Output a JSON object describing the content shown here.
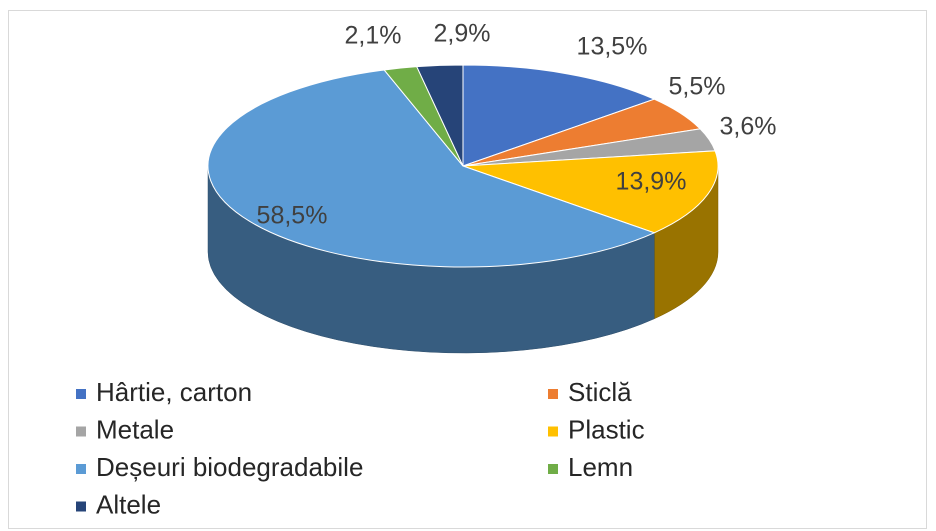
{
  "chart_data": {
    "type": "pie",
    "categories": [
      "Hârtie, carton",
      "Sticlă",
      "Metale",
      "Plastic",
      "Deșeuri biodegradabile",
      "Lemn",
      "Altele"
    ],
    "values": [
      13.5,
      5.5,
      3.6,
      13.9,
      58.5,
      2.1,
      2.9
    ],
    "value_labels": [
      "13,5%",
      "5,5%",
      "3,6%",
      "13,9%",
      "58,5%",
      "2,1%",
      "2,9%"
    ],
    "colors": [
      "#4472c4",
      "#ed7d31",
      "#a5a5a5",
      "#ffc000",
      "#5b9bd5",
      "#70ad47",
      "#264478"
    ],
    "legend": "bottom"
  }
}
